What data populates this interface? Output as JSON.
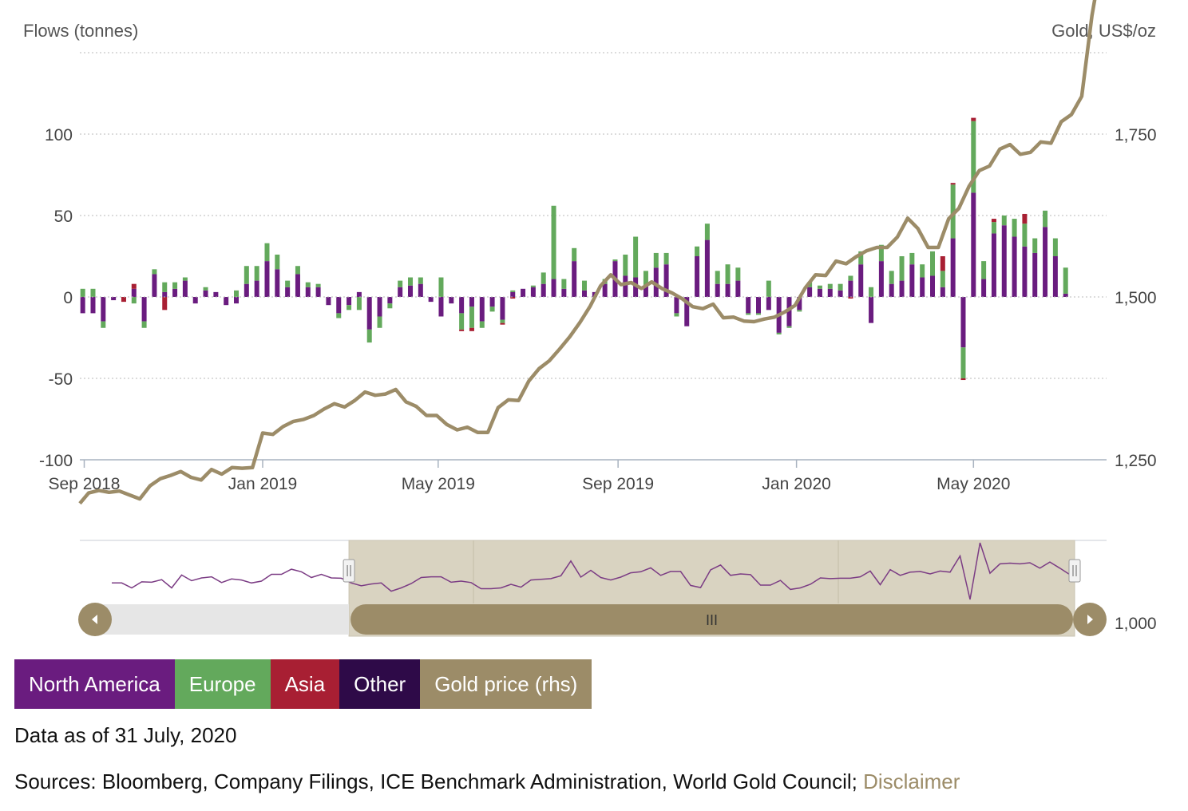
{
  "colors": {
    "north_america": "#6a1c7f",
    "europe": "#63a95c",
    "asia": "#a81f33",
    "other": "#2e0a48",
    "gold": "#9c8c68",
    "gold_light": "#d9d3c1"
  },
  "chart_data": {
    "type": "bar",
    "stacked": true,
    "y_left_label": "Flows (tonnes)",
    "y_right_label": "Gold, US$/oz",
    "y_left_range": [
      -100,
      120
    ],
    "y_left_ticks": [
      "100",
      "50",
      "0",
      "-50",
      "-100"
    ],
    "y_right_range": [
      1000,
      2100
    ],
    "y_right_ticks": [
      "2,000",
      "1,750",
      "1,500",
      "1,250",
      "1,000"
    ],
    "x_range": [
      "2018-08-29",
      "2020-07-31"
    ],
    "x_ticks": [
      {
        "date": "2018-09-01",
        "label": "Sep 2018"
      },
      {
        "date": "2019-01-01",
        "label": "Jan 2019"
      },
      {
        "date": "2019-05-01",
        "label": "May 2019"
      },
      {
        "date": "2019-09-01",
        "label": "Sep 2019"
      },
      {
        "date": "2020-01-01",
        "label": "Jan 2020"
      },
      {
        "date": "2020-05-01",
        "label": "May 2020"
      }
    ],
    "grid": true,
    "legend_placement": "bottom-left",
    "bar_series": [
      {
        "name": "North America",
        "color_key": "north_america"
      },
      {
        "name": "Europe",
        "color_key": "europe"
      },
      {
        "name": "Asia",
        "color_key": "asia"
      },
      {
        "name": "Other",
        "color_key": "other"
      }
    ],
    "weeks": [
      {
        "date": "2018-08-31",
        "na": -10,
        "eu": 5,
        "as": 0,
        "ot": 0
      },
      {
        "date": "2018-09-07",
        "na": -10,
        "eu": 5,
        "as": 0,
        "ot": 0
      },
      {
        "date": "2018-09-14",
        "na": -15,
        "eu": -4,
        "as": 0,
        "ot": 0
      },
      {
        "date": "2018-09-21",
        "na": -2,
        "eu": 0,
        "as": 0,
        "ot": 0
      },
      {
        "date": "2018-09-28",
        "na": 0,
        "eu": 0,
        "as": -3,
        "ot": 0
      },
      {
        "date": "2018-10-05",
        "na": 5,
        "eu": -4,
        "as": 3,
        "ot": 0
      },
      {
        "date": "2018-10-12",
        "na": -15,
        "eu": -4,
        "as": 0,
        "ot": 0
      },
      {
        "date": "2018-10-19",
        "na": 14,
        "eu": 3,
        "as": 0,
        "ot": 0
      },
      {
        "date": "2018-10-26",
        "na": 3,
        "eu": 6,
        "as": -8,
        "ot": 0
      },
      {
        "date": "2018-11-02",
        "na": 5,
        "eu": 4,
        "as": 0,
        "ot": 0
      },
      {
        "date": "2018-11-09",
        "na": 10,
        "eu": 2,
        "as": 0,
        "ot": 0
      },
      {
        "date": "2018-11-16",
        "na": -4,
        "eu": 0,
        "as": 0,
        "ot": 0
      },
      {
        "date": "2018-11-23",
        "na": 4,
        "eu": 2,
        "as": 0,
        "ot": 0
      },
      {
        "date": "2018-11-30",
        "na": 3,
        "eu": 0,
        "as": 0,
        "ot": 0
      },
      {
        "date": "2018-12-07",
        "na": -5,
        "eu": 0,
        "as": 0,
        "ot": 0
      },
      {
        "date": "2018-12-14",
        "na": -4,
        "eu": 4,
        "as": 0,
        "ot": 0
      },
      {
        "date": "2018-12-21",
        "na": 8,
        "eu": 11,
        "as": 0,
        "ot": 0
      },
      {
        "date": "2018-12-28",
        "na": 10,
        "eu": 9,
        "as": 0,
        "ot": 0
      },
      {
        "date": "2019-01-04",
        "na": 22,
        "eu": 11,
        "as": 0,
        "ot": 0
      },
      {
        "date": "2019-01-11",
        "na": 17,
        "eu": 9,
        "as": 0,
        "ot": 0
      },
      {
        "date": "2019-01-18",
        "na": 6,
        "eu": 4,
        "as": 0,
        "ot": 0
      },
      {
        "date": "2019-01-25",
        "na": 14,
        "eu": 5,
        "as": 0,
        "ot": 0
      },
      {
        "date": "2019-02-01",
        "na": 6,
        "eu": 3,
        "as": 0,
        "ot": 0
      },
      {
        "date": "2019-02-08",
        "na": 6,
        "eu": 2,
        "as": 0,
        "ot": 0
      },
      {
        "date": "2019-02-15",
        "na": -5,
        "eu": 0,
        "as": 0,
        "ot": 0
      },
      {
        "date": "2019-02-22",
        "na": -10,
        "eu": -3,
        "as": 0,
        "ot": 0
      },
      {
        "date": "2019-03-01",
        "na": -5,
        "eu": -3,
        "as": 0,
        "ot": 0
      },
      {
        "date": "2019-03-08",
        "na": 3,
        "eu": -8,
        "as": 0,
        "ot": 0
      },
      {
        "date": "2019-03-15",
        "na": -20,
        "eu": -8,
        "as": 0,
        "ot": 0
      },
      {
        "date": "2019-03-22",
        "na": -12,
        "eu": -7,
        "as": 0,
        "ot": 0
      },
      {
        "date": "2019-03-29",
        "na": -4,
        "eu": -3,
        "as": 0,
        "ot": 0
      },
      {
        "date": "2019-04-05",
        "na": 6,
        "eu": 4,
        "as": 0,
        "ot": 0
      },
      {
        "date": "2019-04-12",
        "na": 7,
        "eu": 5,
        "as": 0,
        "ot": 0
      },
      {
        "date": "2019-04-19",
        "na": 8,
        "eu": 4,
        "as": 0,
        "ot": 0
      },
      {
        "date": "2019-04-26",
        "na": -3,
        "eu": 0,
        "as": 0,
        "ot": 0
      },
      {
        "date": "2019-05-03",
        "na": -12,
        "eu": 12,
        "as": 0,
        "ot": 0
      },
      {
        "date": "2019-05-10",
        "na": -4,
        "eu": 0,
        "as": 0,
        "ot": 0
      },
      {
        "date": "2019-05-17",
        "na": -10,
        "eu": -10,
        "as": -1,
        "ot": 0
      },
      {
        "date": "2019-05-24",
        "na": -6,
        "eu": -13,
        "as": -2,
        "ot": 0
      },
      {
        "date": "2019-05-31",
        "na": -15,
        "eu": -4,
        "as": 0,
        "ot": 0
      },
      {
        "date": "2019-06-07",
        "na": -6,
        "eu": -3,
        "as": 0,
        "ot": 0
      },
      {
        "date": "2019-06-14",
        "na": -14,
        "eu": -2,
        "as": -1,
        "ot": 0
      },
      {
        "date": "2019-06-21",
        "na": 3,
        "eu": 1,
        "as": -1,
        "ot": 0
      },
      {
        "date": "2019-06-28",
        "na": 5,
        "eu": 0,
        "as": 0,
        "ot": 0
      },
      {
        "date": "2019-07-05",
        "na": 6,
        "eu": 1,
        "as": 0,
        "ot": 0
      },
      {
        "date": "2019-07-12",
        "na": 8,
        "eu": 7,
        "as": 0,
        "ot": 0
      },
      {
        "date": "2019-07-19",
        "na": 11,
        "eu": 45,
        "as": 0,
        "ot": 0
      },
      {
        "date": "2019-07-26",
        "na": 5,
        "eu": 6,
        "as": 0,
        "ot": 0
      },
      {
        "date": "2019-08-02",
        "na": 22,
        "eu": 8,
        "as": 0,
        "ot": 0
      },
      {
        "date": "2019-08-09",
        "na": 4,
        "eu": 6,
        "as": 0,
        "ot": 0
      },
      {
        "date": "2019-08-16",
        "na": 3,
        "eu": 0,
        "as": 0,
        "ot": 0
      },
      {
        "date": "2019-08-23",
        "na": 8,
        "eu": 3,
        "as": 0,
        "ot": 0
      },
      {
        "date": "2019-08-30",
        "na": 22,
        "eu": 1,
        "as": 0,
        "ot": 0
      },
      {
        "date": "2019-09-06",
        "na": 13,
        "eu": 13,
        "as": 0,
        "ot": 0
      },
      {
        "date": "2019-09-13",
        "na": 12,
        "eu": 25,
        "as": 0,
        "ot": 0
      },
      {
        "date": "2019-09-20",
        "na": 7,
        "eu": 9,
        "as": 0,
        "ot": 0
      },
      {
        "date": "2019-09-27",
        "na": 18,
        "eu": 9,
        "as": 0,
        "ot": 0
      },
      {
        "date": "2019-10-04",
        "na": 20,
        "eu": 7,
        "as": 0,
        "ot": 0
      },
      {
        "date": "2019-10-11",
        "na": -10,
        "eu": -2,
        "as": 0,
        "ot": 0
      },
      {
        "date": "2019-10-18",
        "na": -18,
        "eu": 0,
        "as": 0,
        "ot": 0
      },
      {
        "date": "2019-10-25",
        "na": 25,
        "eu": 6,
        "as": 0,
        "ot": 0
      },
      {
        "date": "2019-11-01",
        "na": 35,
        "eu": 10,
        "as": 0,
        "ot": 0
      },
      {
        "date": "2019-11-08",
        "na": 8,
        "eu": 8,
        "as": 0,
        "ot": 0
      },
      {
        "date": "2019-11-15",
        "na": 8,
        "eu": 12,
        "as": 0,
        "ot": 0
      },
      {
        "date": "2019-11-22",
        "na": 10,
        "eu": 8,
        "as": 0,
        "ot": 0
      },
      {
        "date": "2019-11-29",
        "na": -10,
        "eu": -1,
        "as": 0,
        "ot": 0
      },
      {
        "date": "2019-12-06",
        "na": -10,
        "eu": -1,
        "as": 0,
        "ot": 0
      },
      {
        "date": "2019-12-13",
        "na": -8,
        "eu": 10,
        "as": 0,
        "ot": 0
      },
      {
        "date": "2019-12-20",
        "na": -22,
        "eu": -1,
        "as": 0,
        "ot": 0
      },
      {
        "date": "2019-12-27",
        "na": -18,
        "eu": -1,
        "as": 0,
        "ot": 0
      },
      {
        "date": "2020-01-03",
        "na": -8,
        "eu": -1,
        "as": 0,
        "ot": 0
      },
      {
        "date": "2020-01-10",
        "na": 6,
        "eu": 3,
        "as": 0,
        "ot": 0
      },
      {
        "date": "2020-01-17",
        "na": 5,
        "eu": 2,
        "as": 0,
        "ot": 0
      },
      {
        "date": "2020-01-24",
        "na": 5,
        "eu": 3,
        "as": 0,
        "ot": 0
      },
      {
        "date": "2020-01-31",
        "na": 4,
        "eu": 4,
        "as": 0,
        "ot": 0
      },
      {
        "date": "2020-02-07",
        "na": 10,
        "eu": 3,
        "as": -1,
        "ot": 0
      },
      {
        "date": "2020-02-14",
        "na": 20,
        "eu": 8,
        "as": 0,
        "ot": 0
      },
      {
        "date": "2020-02-21",
        "na": -16,
        "eu": 6,
        "as": 0,
        "ot": 0
      },
      {
        "date": "2020-02-28",
        "na": 22,
        "eu": 10,
        "as": 0,
        "ot": 0
      },
      {
        "date": "2020-03-06",
        "na": 8,
        "eu": 8,
        "as": 0,
        "ot": 0
      },
      {
        "date": "2020-03-13",
        "na": 10,
        "eu": 15,
        "as": 0,
        "ot": 0
      },
      {
        "date": "2020-03-20",
        "na": 20,
        "eu": 7,
        "as": 0,
        "ot": 0
      },
      {
        "date": "2020-03-27",
        "na": 12,
        "eu": 8,
        "as": 0,
        "ot": 0
      },
      {
        "date": "2020-04-03",
        "na": 13,
        "eu": 15,
        "as": 0,
        "ot": 0
      },
      {
        "date": "2020-04-10",
        "na": 6,
        "eu": 10,
        "as": 9,
        "ot": 0
      },
      {
        "date": "2020-04-17",
        "na": 36,
        "eu": 33,
        "as": 1,
        "ot": 0
      },
      {
        "date": "2020-04-24",
        "na": -31,
        "eu": -19,
        "as": -1,
        "ot": 0
      },
      {
        "date": "2020-05-01",
        "na": 64,
        "eu": 44,
        "as": 2,
        "ot": 0
      },
      {
        "date": "2020-05-08",
        "na": 11,
        "eu": 11,
        "as": 0,
        "ot": 0
      },
      {
        "date": "2020-05-15",
        "na": 39,
        "eu": 7,
        "as": 2,
        "ot": 0
      },
      {
        "date": "2020-05-22",
        "na": 44,
        "eu": 6,
        "as": 0,
        "ot": 0
      },
      {
        "date": "2020-05-29",
        "na": 37,
        "eu": 11,
        "as": 0,
        "ot": 0
      },
      {
        "date": "2020-06-05",
        "na": 31,
        "eu": 14,
        "as": 6,
        "ot": 0
      },
      {
        "date": "2020-06-12",
        "na": 27,
        "eu": 9,
        "as": 0,
        "ot": 0
      },
      {
        "date": "2020-06-19",
        "na": 43,
        "eu": 10,
        "as": 0,
        "ot": 0
      },
      {
        "date": "2020-06-26",
        "na": 25,
        "eu": 11,
        "as": 0,
        "ot": 0
      },
      {
        "date": "2020-07-03",
        "na": 2,
        "eu": 16,
        "as": 0,
        "ot": 0
      }
    ],
    "gold_price": {
      "name": "Gold price (rhs)",
      "x": [
        "2018-08-29",
        "2018-09-04",
        "2018-09-11",
        "2018-09-18",
        "2018-09-25",
        "2018-10-02",
        "2018-10-09",
        "2018-10-16",
        "2018-10-23",
        "2018-10-30",
        "2018-11-06",
        "2018-11-13",
        "2018-11-20",
        "2018-11-27",
        "2018-12-04",
        "2018-12-11",
        "2018-12-18",
        "2018-12-25",
        "2019-01-01",
        "2019-01-08",
        "2019-01-15",
        "2019-01-22",
        "2019-01-29",
        "2019-02-05",
        "2019-02-12",
        "2019-02-19",
        "2019-02-26",
        "2019-03-05",
        "2019-03-12",
        "2019-03-19",
        "2019-03-26",
        "2019-04-02",
        "2019-04-09",
        "2019-04-16",
        "2019-04-23",
        "2019-04-30",
        "2019-05-07",
        "2019-05-14",
        "2019-05-21",
        "2019-05-28",
        "2019-06-04",
        "2019-06-11",
        "2019-06-18",
        "2019-06-25",
        "2019-07-02",
        "2019-07-09",
        "2019-07-16",
        "2019-07-23",
        "2019-07-30",
        "2019-08-06",
        "2019-08-13",
        "2019-08-20",
        "2019-08-27",
        "2019-09-03",
        "2019-09-10",
        "2019-09-17",
        "2019-09-24",
        "2019-10-01",
        "2019-10-08",
        "2019-10-15",
        "2019-10-22",
        "2019-10-29",
        "2019-11-05",
        "2019-11-12",
        "2019-11-19",
        "2019-11-26",
        "2019-12-03",
        "2019-12-10",
        "2019-12-17",
        "2019-12-24",
        "2019-12-31",
        "2020-01-07",
        "2020-01-14",
        "2020-01-21",
        "2020-01-28",
        "2020-02-04",
        "2020-02-11",
        "2020-02-18",
        "2020-02-25",
        "2020-03-03",
        "2020-03-10",
        "2020-03-17",
        "2020-03-24",
        "2020-03-31",
        "2020-04-07",
        "2020-04-14",
        "2020-04-21",
        "2020-04-28",
        "2020-05-05",
        "2020-05-12",
        "2020-05-19",
        "2020-05-26",
        "2020-06-02",
        "2020-06-09",
        "2020-06-16",
        "2020-06-23",
        "2020-06-30",
        "2020-07-07",
        "2020-07-14",
        "2020-07-21",
        "2020-07-28"
      ],
      "y": [
        1183,
        1199,
        1203,
        1200,
        1202,
        1196,
        1190,
        1210,
        1221,
        1226,
        1232,
        1223,
        1219,
        1235,
        1228,
        1238,
        1237,
        1238,
        1291,
        1289,
        1301,
        1309,
        1312,
        1318,
        1328,
        1336,
        1331,
        1341,
        1354,
        1349,
        1351,
        1358,
        1339,
        1332,
        1318,
        1318,
        1304,
        1296,
        1300,
        1292,
        1292,
        1330,
        1342,
        1341,
        1371,
        1390,
        1402,
        1420,
        1439,
        1461,
        1486,
        1517,
        1534,
        1519,
        1522,
        1513,
        1523,
        1513,
        1506,
        1497,
        1485,
        1482,
        1489,
        1468,
        1469,
        1463,
        1462,
        1466,
        1469,
        1477,
        1487,
        1514,
        1534,
        1533,
        1555,
        1551,
        1562,
        1571,
        1576,
        1576,
        1592,
        1621,
        1605,
        1576,
        1576,
        1620,
        1636,
        1670,
        1694,
        1701,
        1727,
        1734,
        1719,
        1722,
        1738,
        1736,
        1769,
        1780,
        1808,
        1932,
        2022
      ]
    }
  },
  "legend": {
    "items": [
      {
        "label": "North America",
        "color_key": "north_america"
      },
      {
        "label": "Europe",
        "color_key": "europe"
      },
      {
        "label": "Asia",
        "color_key": "asia"
      },
      {
        "label": "Other",
        "color_key": "other"
      },
      {
        "label": "Gold price (rhs)",
        "color_key": "gold"
      }
    ]
  },
  "navigator": {
    "range_start": "2019-03-01",
    "range_end": "2020-07-31"
  },
  "notes": {
    "as_of": "Data as of 31 July, 2020",
    "sources": "Sources: Bloomberg, Company Filings, ICE Benchmark Administration, World Gold Council;",
    "disclaimer": "Disclaimer"
  }
}
